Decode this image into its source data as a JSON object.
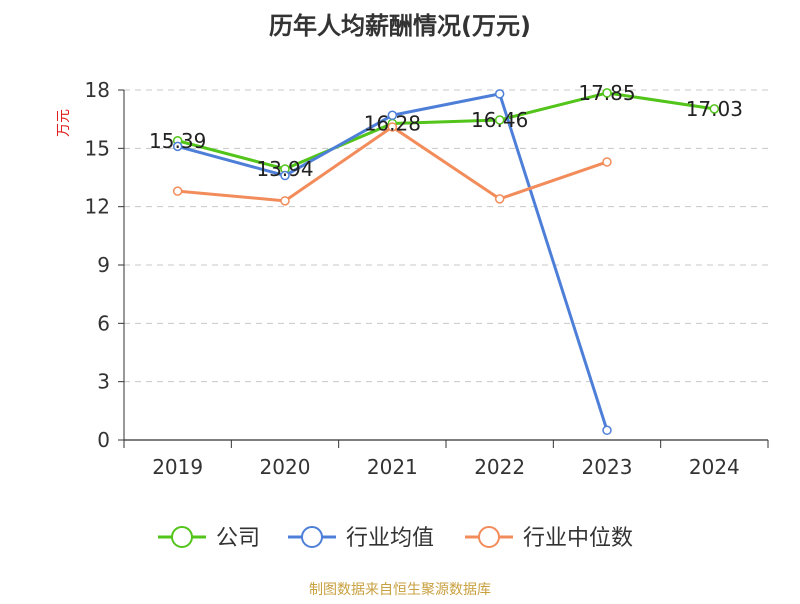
{
  "chart_data": {
    "type": "line",
    "title": "历年人均薪酬情况(万元)",
    "ylabel": "万元",
    "xlabel": "",
    "categories": [
      "2019",
      "2020",
      "2021",
      "2022",
      "2023",
      "2024"
    ],
    "ylim": [
      0,
      18
    ],
    "yticks": [
      0,
      3,
      6,
      9,
      12,
      15,
      18
    ],
    "grid": true,
    "legend_position": "bottom",
    "series": [
      {
        "name": "公司",
        "color": "#52c41a",
        "values": [
          15.39,
          13.94,
          16.28,
          16.46,
          17.85,
          17.03
        ],
        "labels": [
          "15.39",
          "13.94",
          "16.28",
          "16.46",
          "17.85",
          "17.03"
        ]
      },
      {
        "name": "行业均值",
        "color": "#4e7fd8",
        "values": [
          15.1,
          13.6,
          16.7,
          17.8,
          0.5,
          null
        ]
      },
      {
        "name": "行业中位数",
        "color": "#f28c5a",
        "values": [
          12.8,
          12.3,
          16.1,
          12.4,
          14.3,
          null
        ]
      }
    ]
  },
  "source": "制图数据来自恒生聚源数据库"
}
